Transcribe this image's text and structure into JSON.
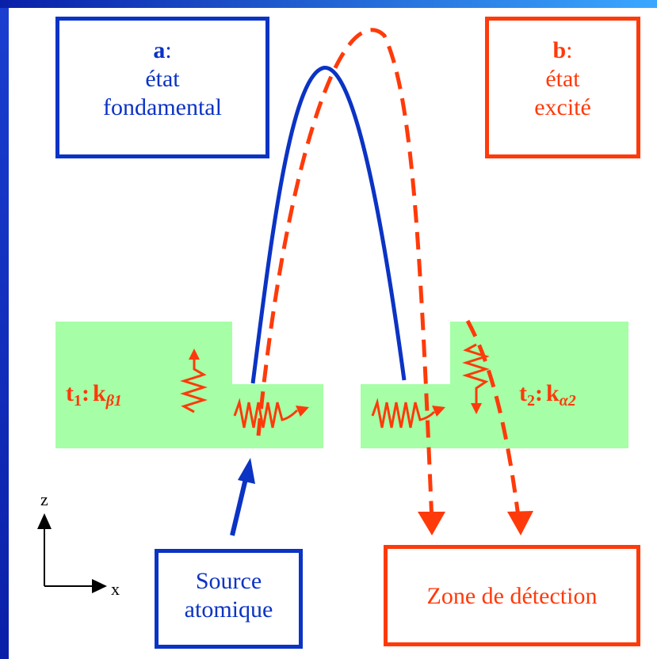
{
  "state_a": {
    "letter": "a",
    "colon": ":",
    "line1": "état",
    "line2": "fondamental"
  },
  "state_b": {
    "letter": "b",
    "colon": ":",
    "line1": "état",
    "line2": "excité"
  },
  "laser1": {
    "t": "t",
    "t_sub": "1",
    "sep": ":",
    "k": "k",
    "k_sub": "β1"
  },
  "laser2": {
    "t": "t",
    "t_sub": "2",
    "sep": ":",
    "k": "k",
    "k_sub": "α2"
  },
  "source": {
    "line1": "Source",
    "line2": "atomique"
  },
  "detection": {
    "label": "Zone de détection"
  },
  "axes": {
    "z": "z",
    "x": "x"
  },
  "colors": {
    "ground_state": "#0b33c4",
    "excited_state": "#ff3a0a",
    "laser_zone": "#a6ffa6",
    "frame": "#0a1fa8"
  }
}
